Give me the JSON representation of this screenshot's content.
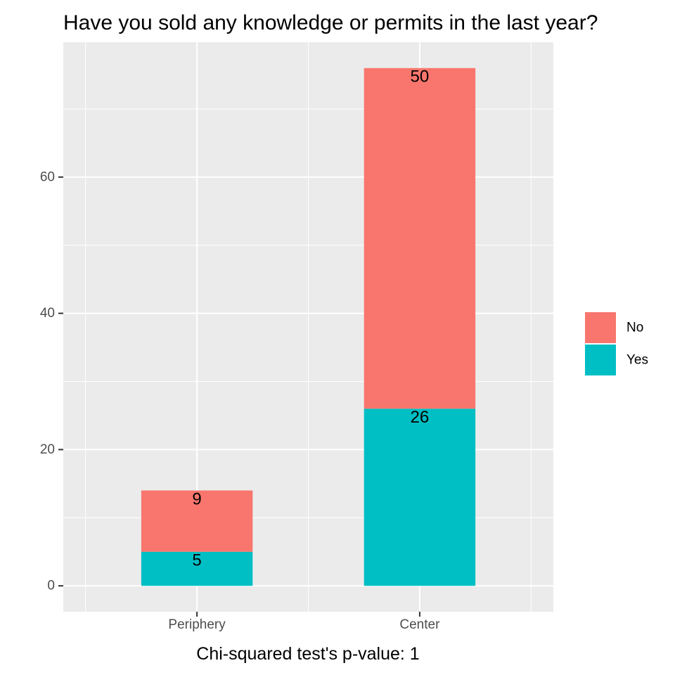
{
  "chart_data": {
    "type": "bar",
    "stacked": true,
    "title": "Have you sold any knowledge or permits in the last year?",
    "xlabel": "Chi-squared test's p-value: 1",
    "ylabel": "",
    "categories": [
      "Periphery",
      "Center"
    ],
    "series": [
      {
        "name": "Yes",
        "values": [
          5,
          26
        ],
        "color": "#00BFC4"
      },
      {
        "name": "No",
        "values": [
          9,
          50
        ],
        "color": "#F8766D"
      }
    ],
    "ylim": [
      -3.8,
      79.8
    ],
    "yticks": [
      0,
      20,
      40,
      60
    ],
    "ytick_labels": [
      "0",
      "20",
      "40",
      "60"
    ],
    "legend_order": [
      "No",
      "Yes"
    ],
    "legend_position": "right",
    "grid": true,
    "panel_background": "#EBEBEB"
  }
}
